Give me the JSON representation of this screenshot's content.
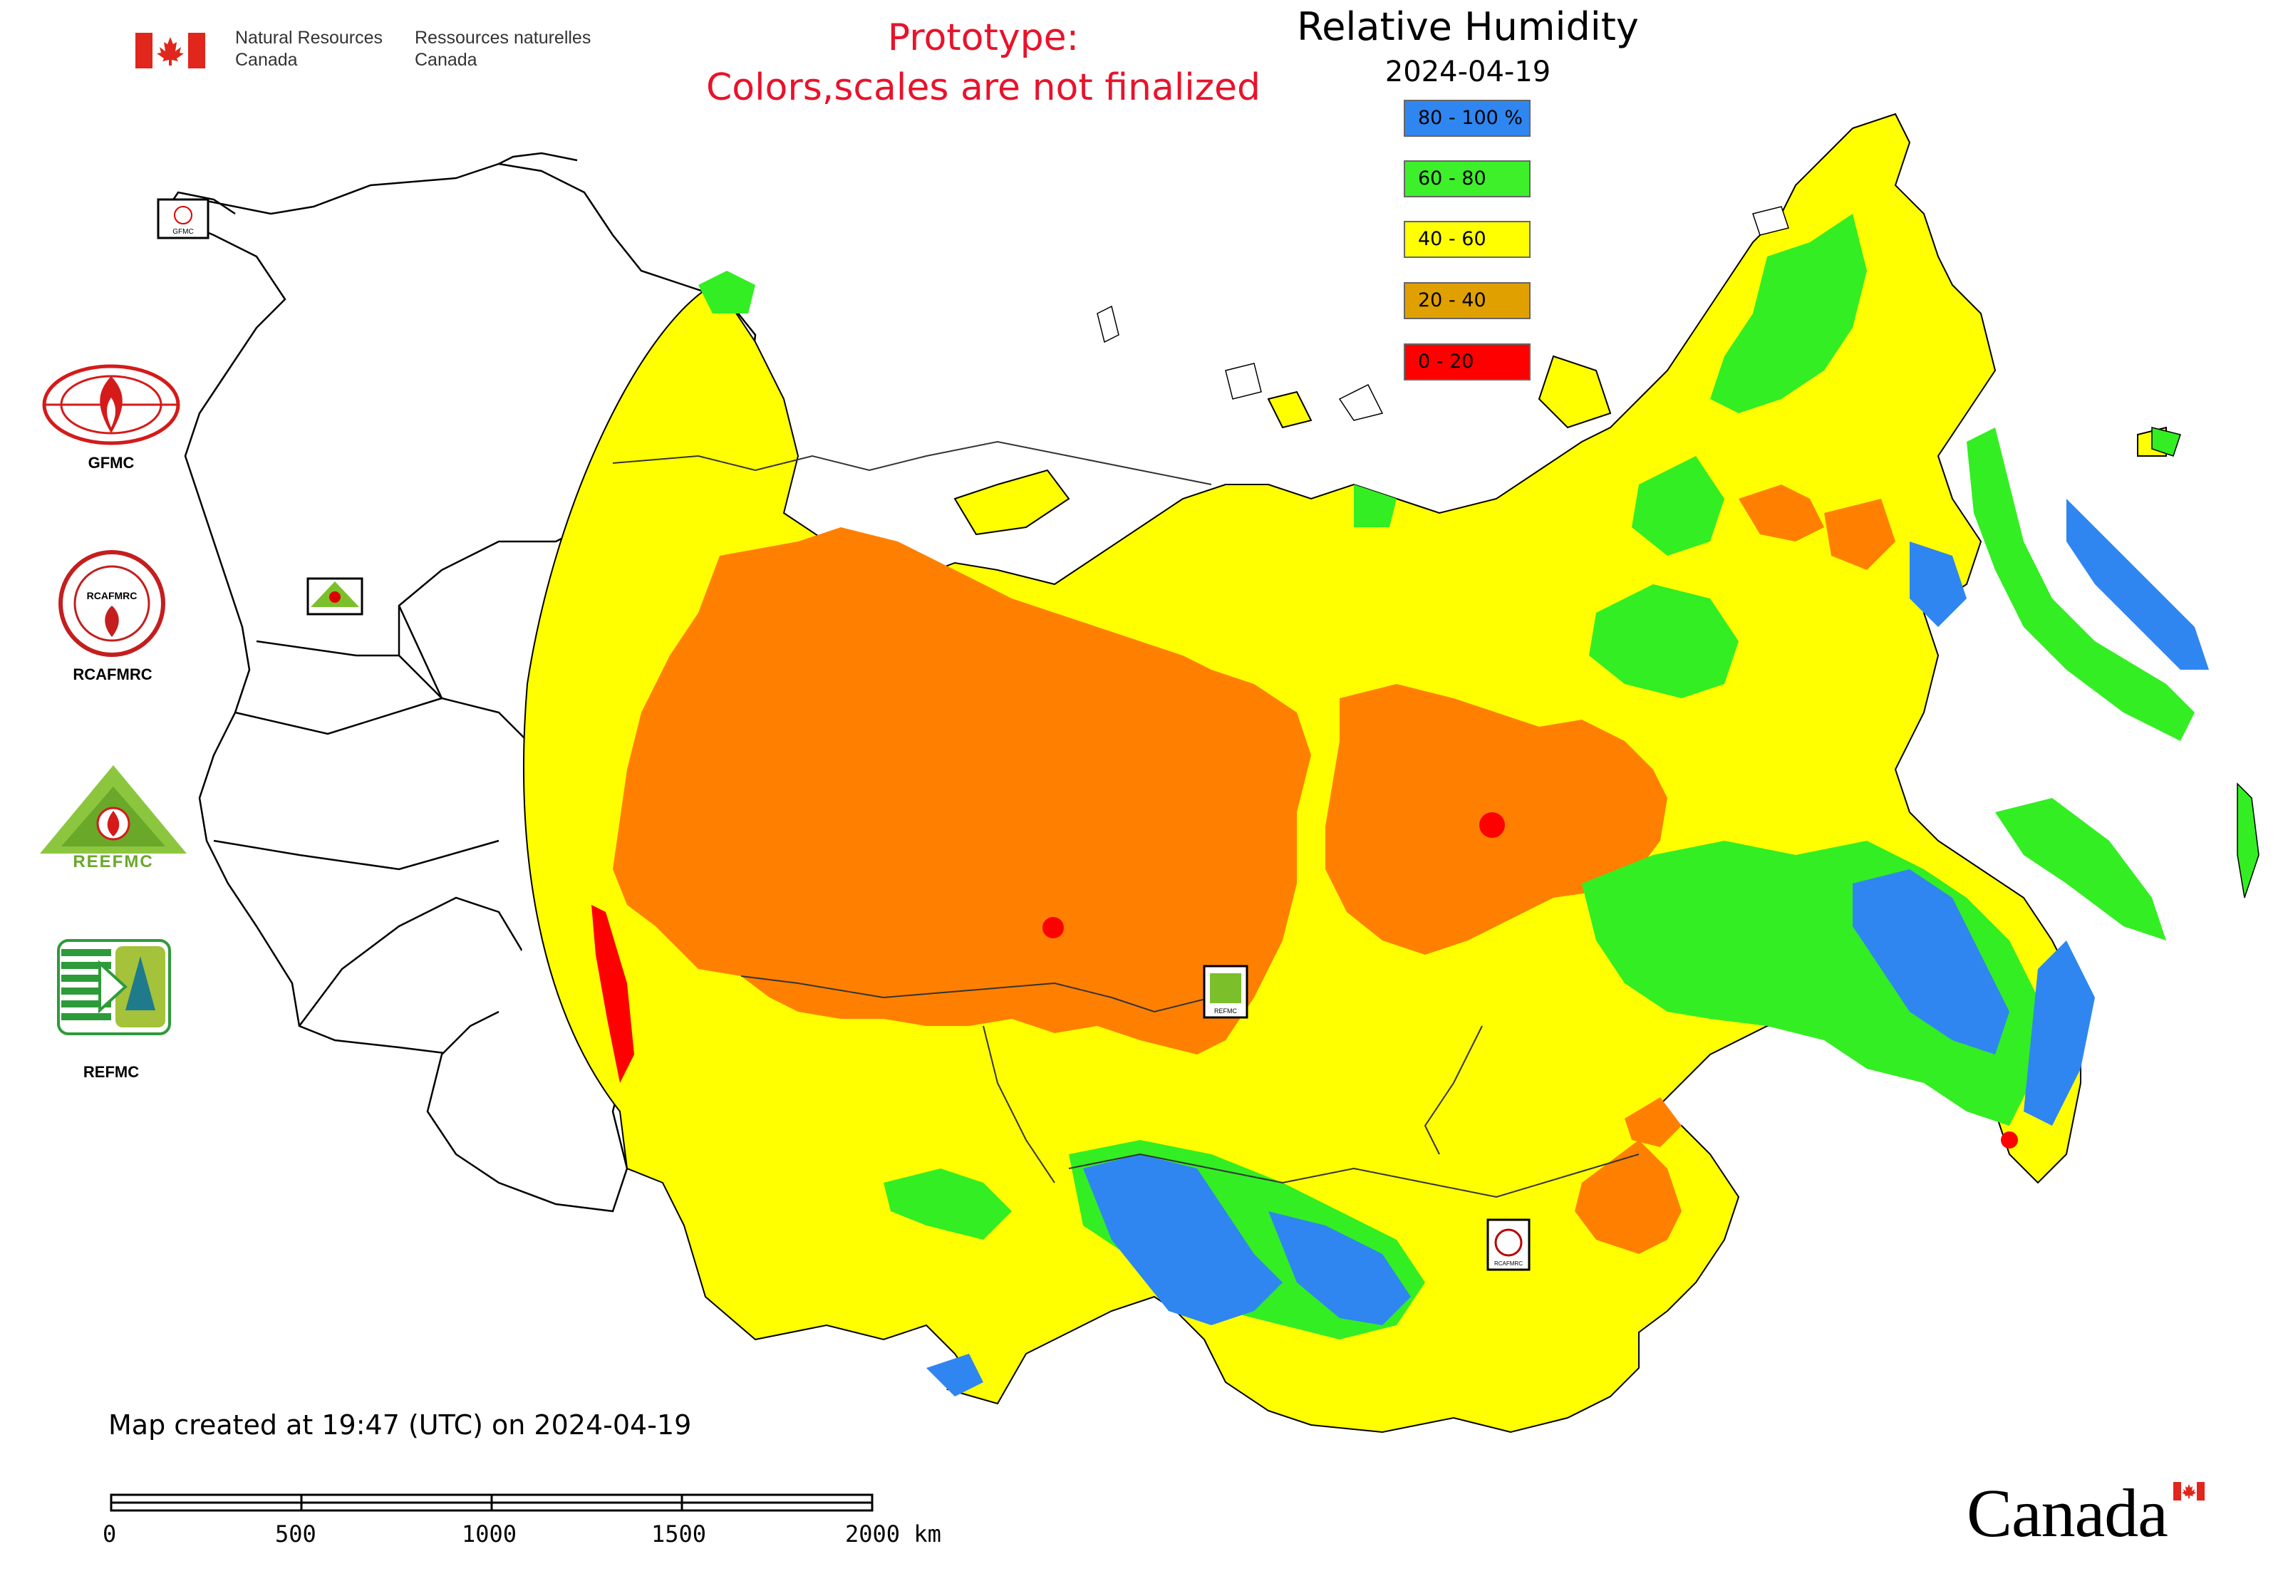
{
  "header": {
    "agency_en_line1": "Natural Resources",
    "agency_en_line2": "Canada",
    "agency_fr_line1": "Ressources naturelles",
    "agency_fr_line2": "Canada",
    "prototype_line1": "Prototype:",
    "prototype_line2": "Colors,scales are not finalized"
  },
  "title": "Relative Humidity",
  "date": "2024-04-19",
  "legend": [
    {
      "label": "80 - 100 %",
      "color": "#2f86f0"
    },
    {
      "label": "60 - 80",
      "color": "#3df02a"
    },
    {
      "label": "40 - 60",
      "color": "#ffff00"
    },
    {
      "label": "20 - 40",
      "color": "#e0a000"
    },
    {
      "label": "0 - 20",
      "color": "#ff0000"
    }
  ],
  "centers": [
    {
      "name": "GFMC",
      "label": "GFMC"
    },
    {
      "name": "RCAFMRC",
      "label": "RCAFMRC"
    },
    {
      "name": "REEFMC",
      "label": "REEFMC"
    },
    {
      "name": "REFMC",
      "label": "REFMC"
    }
  ],
  "map_markers": {
    "gfmc": "GFMC",
    "reefmc": "REEFMC",
    "refmc": "REFMC",
    "rcafmrc": "RCAFMRC"
  },
  "map_colors": {
    "orange_20_40": "#ff8000",
    "yellow_40_60": "#ffff00",
    "green_60_80": "#33ee22",
    "blue_80_100": "#2f86f0",
    "red_0_20": "#ff0000",
    "outline": "#000000"
  },
  "footer": {
    "created": "Map created at 19:47 (UTC) on 2024-04-19",
    "scale_labels": [
      "0",
      "500",
      "1000",
      "1500",
      "2000 km"
    ]
  },
  "wordmark": "Canada"
}
